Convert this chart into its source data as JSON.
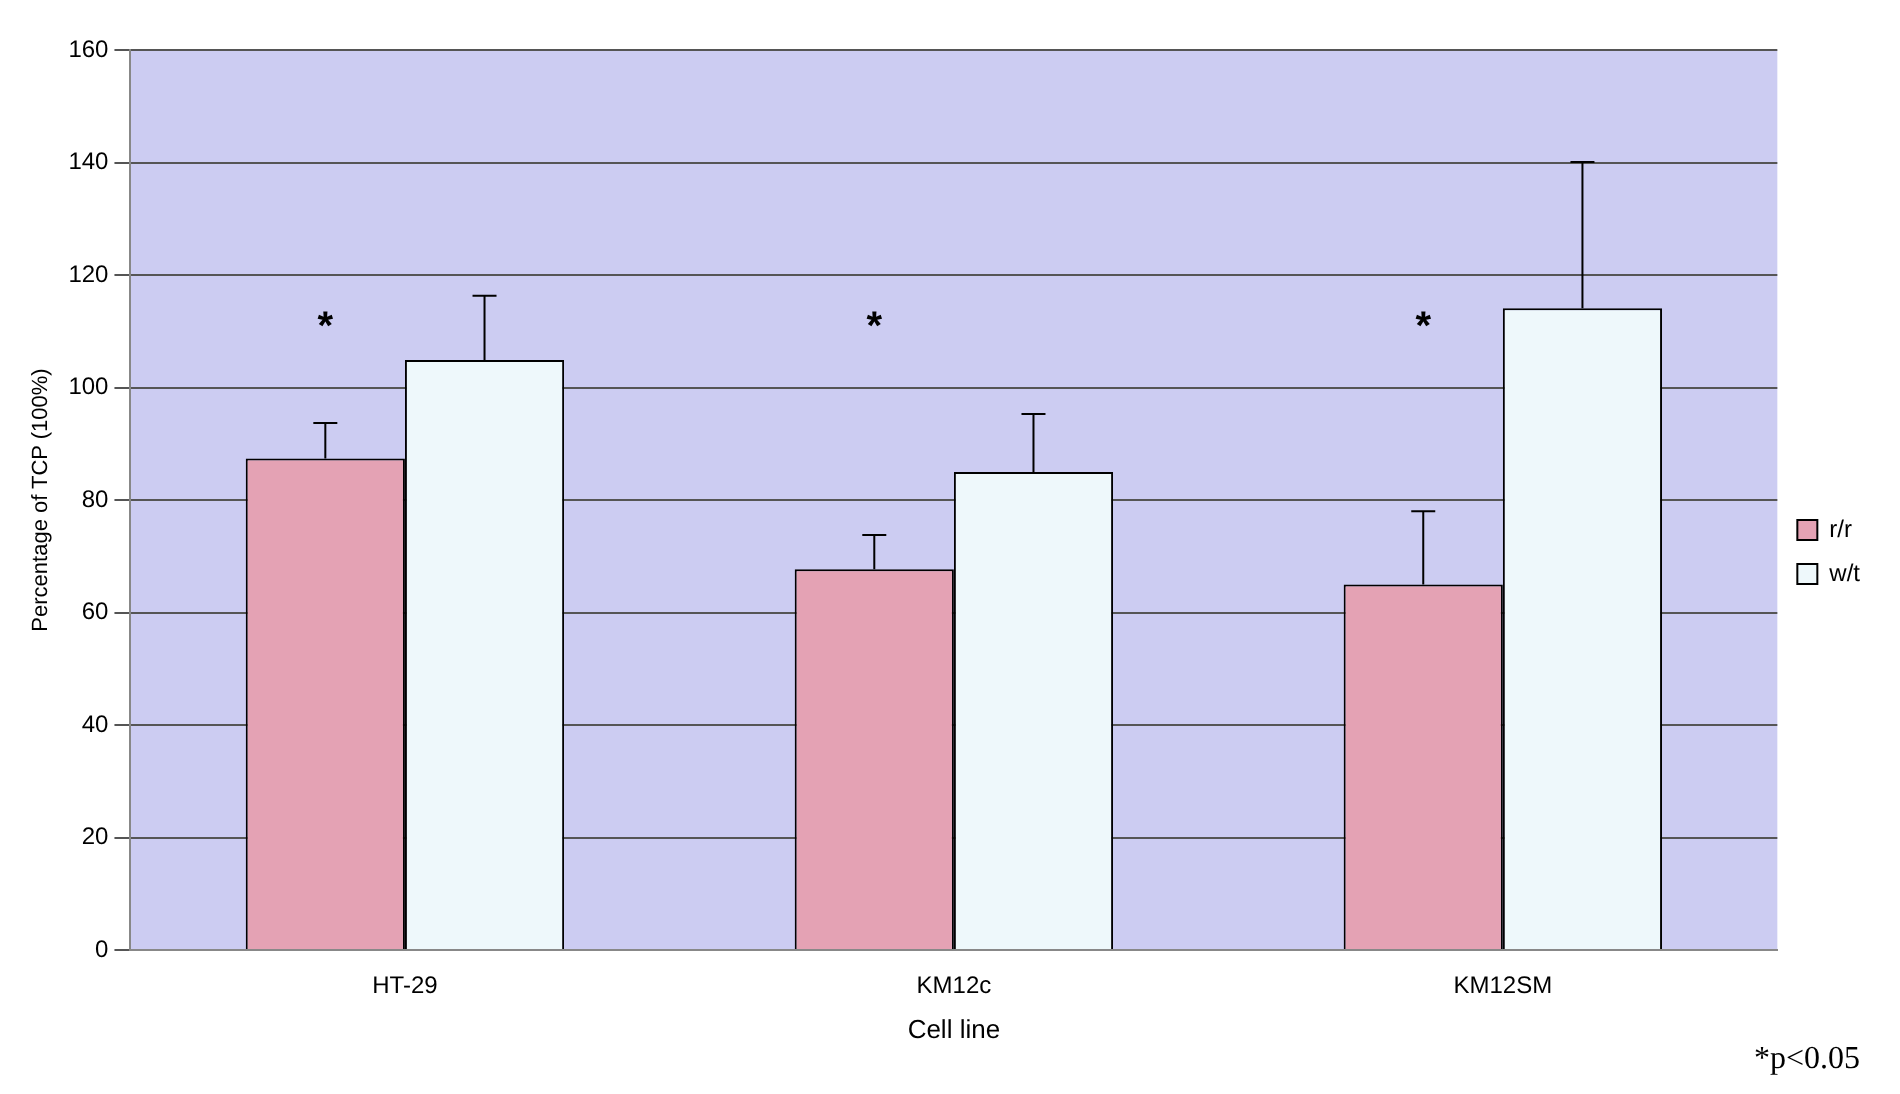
{
  "chart_data": {
    "type": "bar",
    "xlabel": "Cell line",
    "ylabel": "Percentage of TCP (100%)",
    "categories": [
      "HT-29",
      "KM12c",
      "KM12SM"
    ],
    "series": [
      {
        "name": "r/r",
        "color": "#e4a2b4",
        "values": [
          87.4,
          67.7,
          65
        ],
        "errors": [
          6.3,
          6.1,
          13
        ]
      },
      {
        "name": "w/t",
        "color": "#eef8fb",
        "values": [
          104.9,
          85,
          114.1
        ],
        "errors": [
          11.4,
          10.3,
          26
        ]
      }
    ],
    "ylim": [
      0,
      160
    ],
    "yticks": [
      0,
      20,
      40,
      60,
      80,
      100,
      120,
      140,
      160
    ],
    "grid": "y",
    "legend": "right",
    "annotations": [
      "*",
      "*",
      "*",
      "*p<0.05"
    ]
  }
}
